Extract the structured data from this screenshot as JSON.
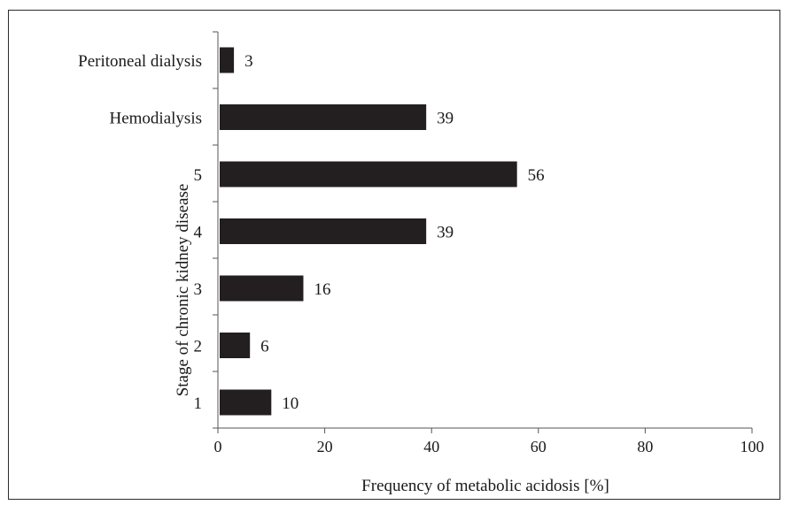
{
  "chart_data": {
    "type": "bar",
    "orientation": "horizontal",
    "categories": [
      "Peritoneal dialysis",
      "Hemodialysis",
      "5",
      "4",
      "3",
      "2",
      "1"
    ],
    "values": [
      3,
      39,
      56,
      39,
      16,
      6,
      10
    ],
    "data_labels": [
      "3",
      "39",
      "56",
      "39",
      "16",
      "6",
      "10"
    ],
    "xlabel": "Frequency of metabolic acidosis [%]",
    "ylabel": "Stage of chronic kidney disease",
    "xlim": [
      0,
      100
    ],
    "xticks": [
      0,
      20,
      40,
      60,
      80,
      100
    ],
    "xtick_labels": [
      "0",
      "20",
      "40",
      "60",
      "80",
      "100"
    ],
    "grid": false,
    "legend": "none",
    "bar_color": "#231f20"
  }
}
